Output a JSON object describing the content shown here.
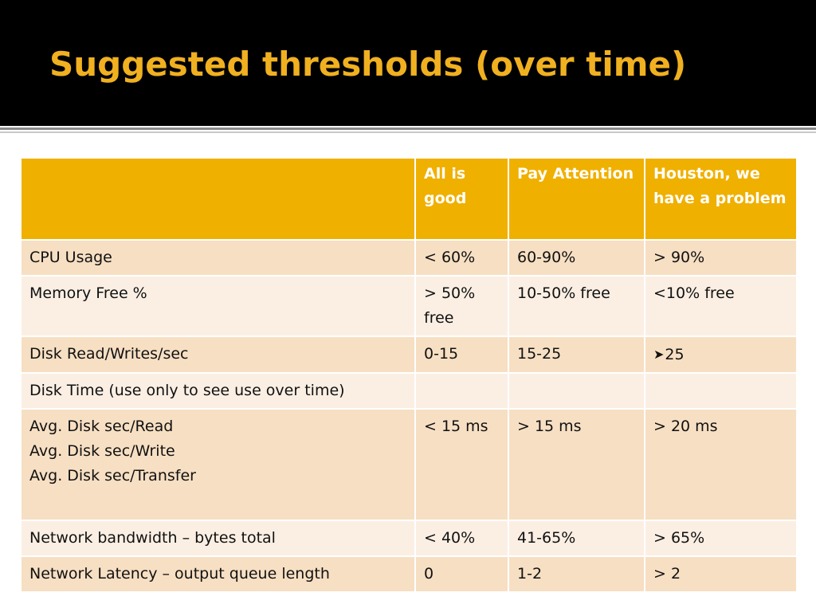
{
  "slide": {
    "title": "Suggested thresholds (over time)"
  },
  "table": {
    "headers": [
      "",
      "All is good",
      "Pay Attention",
      "Houston, we have a problem"
    ],
    "rows": [
      {
        "metric": "CPU Usage",
        "good": " < 60%",
        "attention": " 60-90%",
        "problem": "> 90%"
      },
      {
        "metric": "Memory Free %",
        "good": "> 50% free",
        "attention": "10-50% free",
        "problem": "<10% free"
      },
      {
        "metric": "Disk Read/Writes/sec",
        "good": "0-15",
        "attention": "15-25",
        "problem": "25",
        "problem_icon": "arrowhead-bullet-icon"
      },
      {
        "metric": "Disk Time (use only to see use over time)",
        "good": "",
        "attention": "",
        "problem": ""
      },
      {
        "metric": "Avg. Disk sec/Read\nAvg. Disk sec/Write\nAvg. Disk sec/Transfer",
        "good": "< 15 ms",
        "attention": "> 15 ms",
        "problem": "> 20 ms"
      },
      {
        "metric": "Network bandwidth – bytes total",
        "good": "< 40%",
        "attention": " 41-65%",
        "problem": "> 65%"
      },
      {
        "metric": "Network Latency – output queue length",
        "good": "0",
        "attention": "1-2",
        "problem": "> 2"
      }
    ]
  },
  "colors": {
    "title_background": "#000000",
    "title_text": "#f0b020",
    "header_background": "#f0b000",
    "row_odd": "#f7dfc3",
    "row_even": "#fbefe4"
  }
}
